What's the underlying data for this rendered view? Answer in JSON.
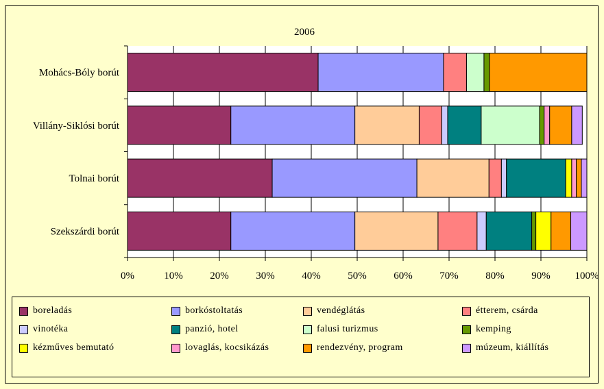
{
  "chart_data": {
    "type": "bar",
    "orientation": "horizontal",
    "stacked": "percent",
    "title": "2006",
    "categories": [
      "Mohács-Bóly borút",
      "Villány-Siklósi borút",
      "Tolnai borút",
      "Szekszárdi borút"
    ],
    "xlim": [
      0,
      100
    ],
    "xticks": [
      "0%",
      "10%",
      "20%",
      "30%",
      "40%",
      "50%",
      "60%",
      "70%",
      "80%",
      "90%",
      "100%"
    ],
    "grid": true,
    "legend_position": "bottom",
    "series": [
      {
        "name": "boreladás",
        "color": "#993366",
        "values": [
          41.5,
          22.5,
          31.5,
          22.5
        ]
      },
      {
        "name": "borkóstoltatás",
        "color": "#9999FF",
        "values": [
          27.3,
          27.0,
          31.5,
          27.0
        ]
      },
      {
        "name": "vendéglátás",
        "color": "#FFCC99",
        "values": [
          0,
          14.0,
          15.7,
          18.1
        ]
      },
      {
        "name": "étterem, csárda",
        "color": "#FF8080",
        "values": [
          5.0,
          4.9,
          2.7,
          8.5
        ]
      },
      {
        "name": "vinotéka",
        "color": "#CCCCFF",
        "values": [
          0,
          1.3,
          1.1,
          2.0
        ]
      },
      {
        "name": "panzió, hotel",
        "color": "#008080",
        "values": [
          0,
          7.3,
          12.9,
          9.9
        ]
      },
      {
        "name": "falusi turizmus",
        "color": "#CCFFCC",
        "values": [
          3.8,
          12.7,
          0,
          0
        ]
      },
      {
        "name": "kemping",
        "color": "#669900",
        "values": [
          1.2,
          1.0,
          0,
          0.9
        ]
      },
      {
        "name": "kézműves bemutató",
        "color": "#FFFF00",
        "values": [
          0,
          0,
          1.3,
          3.3
        ]
      },
      {
        "name": "lovaglás, kocsikázás",
        "color": "#FF99CC",
        "values": [
          0,
          1.2,
          1.0,
          0
        ]
      },
      {
        "name": "rendezvény, program",
        "color": "#FF9900",
        "values": [
          21.2,
          4.8,
          1.1,
          4.3
        ]
      },
      {
        "name": "múzeum, kiállítás",
        "color": "#CC99FF",
        "values": [
          0,
          2.3,
          1.2,
          3.5
        ]
      }
    ]
  }
}
